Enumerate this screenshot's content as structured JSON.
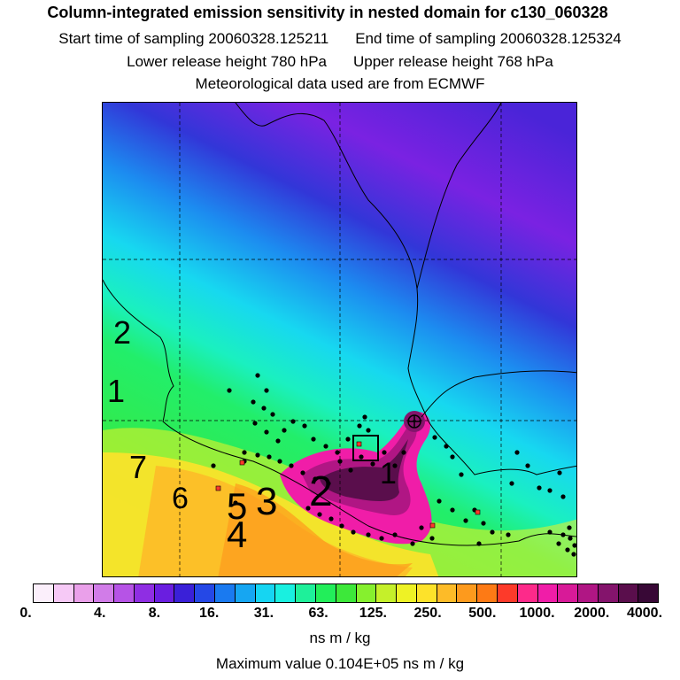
{
  "header": {
    "title": "Column-integrated emission sensitivity in nested domain for c130_060328",
    "start_label": "Start time of sampling 20060328.125211",
    "end_label": "End time of sampling 20060328.125324",
    "lower_release": "Lower release height  780 hPa",
    "upper_release": "Upper release height  768 hPa",
    "met_data": "Meteorological data used are from ECMWF"
  },
  "map": {
    "cluster_labels": [
      "1",
      "2",
      "3",
      "4",
      "5",
      "6",
      "7",
      "2",
      "1"
    ]
  },
  "colorbar": {
    "colors": [
      "#fbeffb",
      "#f6c9f6",
      "#eaa0ea",
      "#d17ce8",
      "#b653e6",
      "#8f2ee3",
      "#6a1ee0",
      "#3a20d8",
      "#2548e6",
      "#1a7af0",
      "#16a6f2",
      "#16d5f2",
      "#19f0e0",
      "#1ef09a",
      "#22ee5a",
      "#3de83a",
      "#86f02e",
      "#c5f02a",
      "#eef225",
      "#fde22a",
      "#fdbb28",
      "#fd9a1d",
      "#fd7a15",
      "#fd3a2a",
      "#fd2a8a",
      "#f01da8",
      "#d81a98",
      "#b01684",
      "#84146c",
      "#5a0e4c",
      "#380836"
    ],
    "tick_labels": [
      "0.",
      "4.",
      "8.",
      "16.",
      "31.",
      "63.",
      "125.",
      "250.",
      "500.",
      "1000.",
      "2000.",
      "4000."
    ],
    "unit": "ns m / kg"
  },
  "footer": {
    "max_value": "Maximum value  0.104E+05 ns m / kg"
  }
}
